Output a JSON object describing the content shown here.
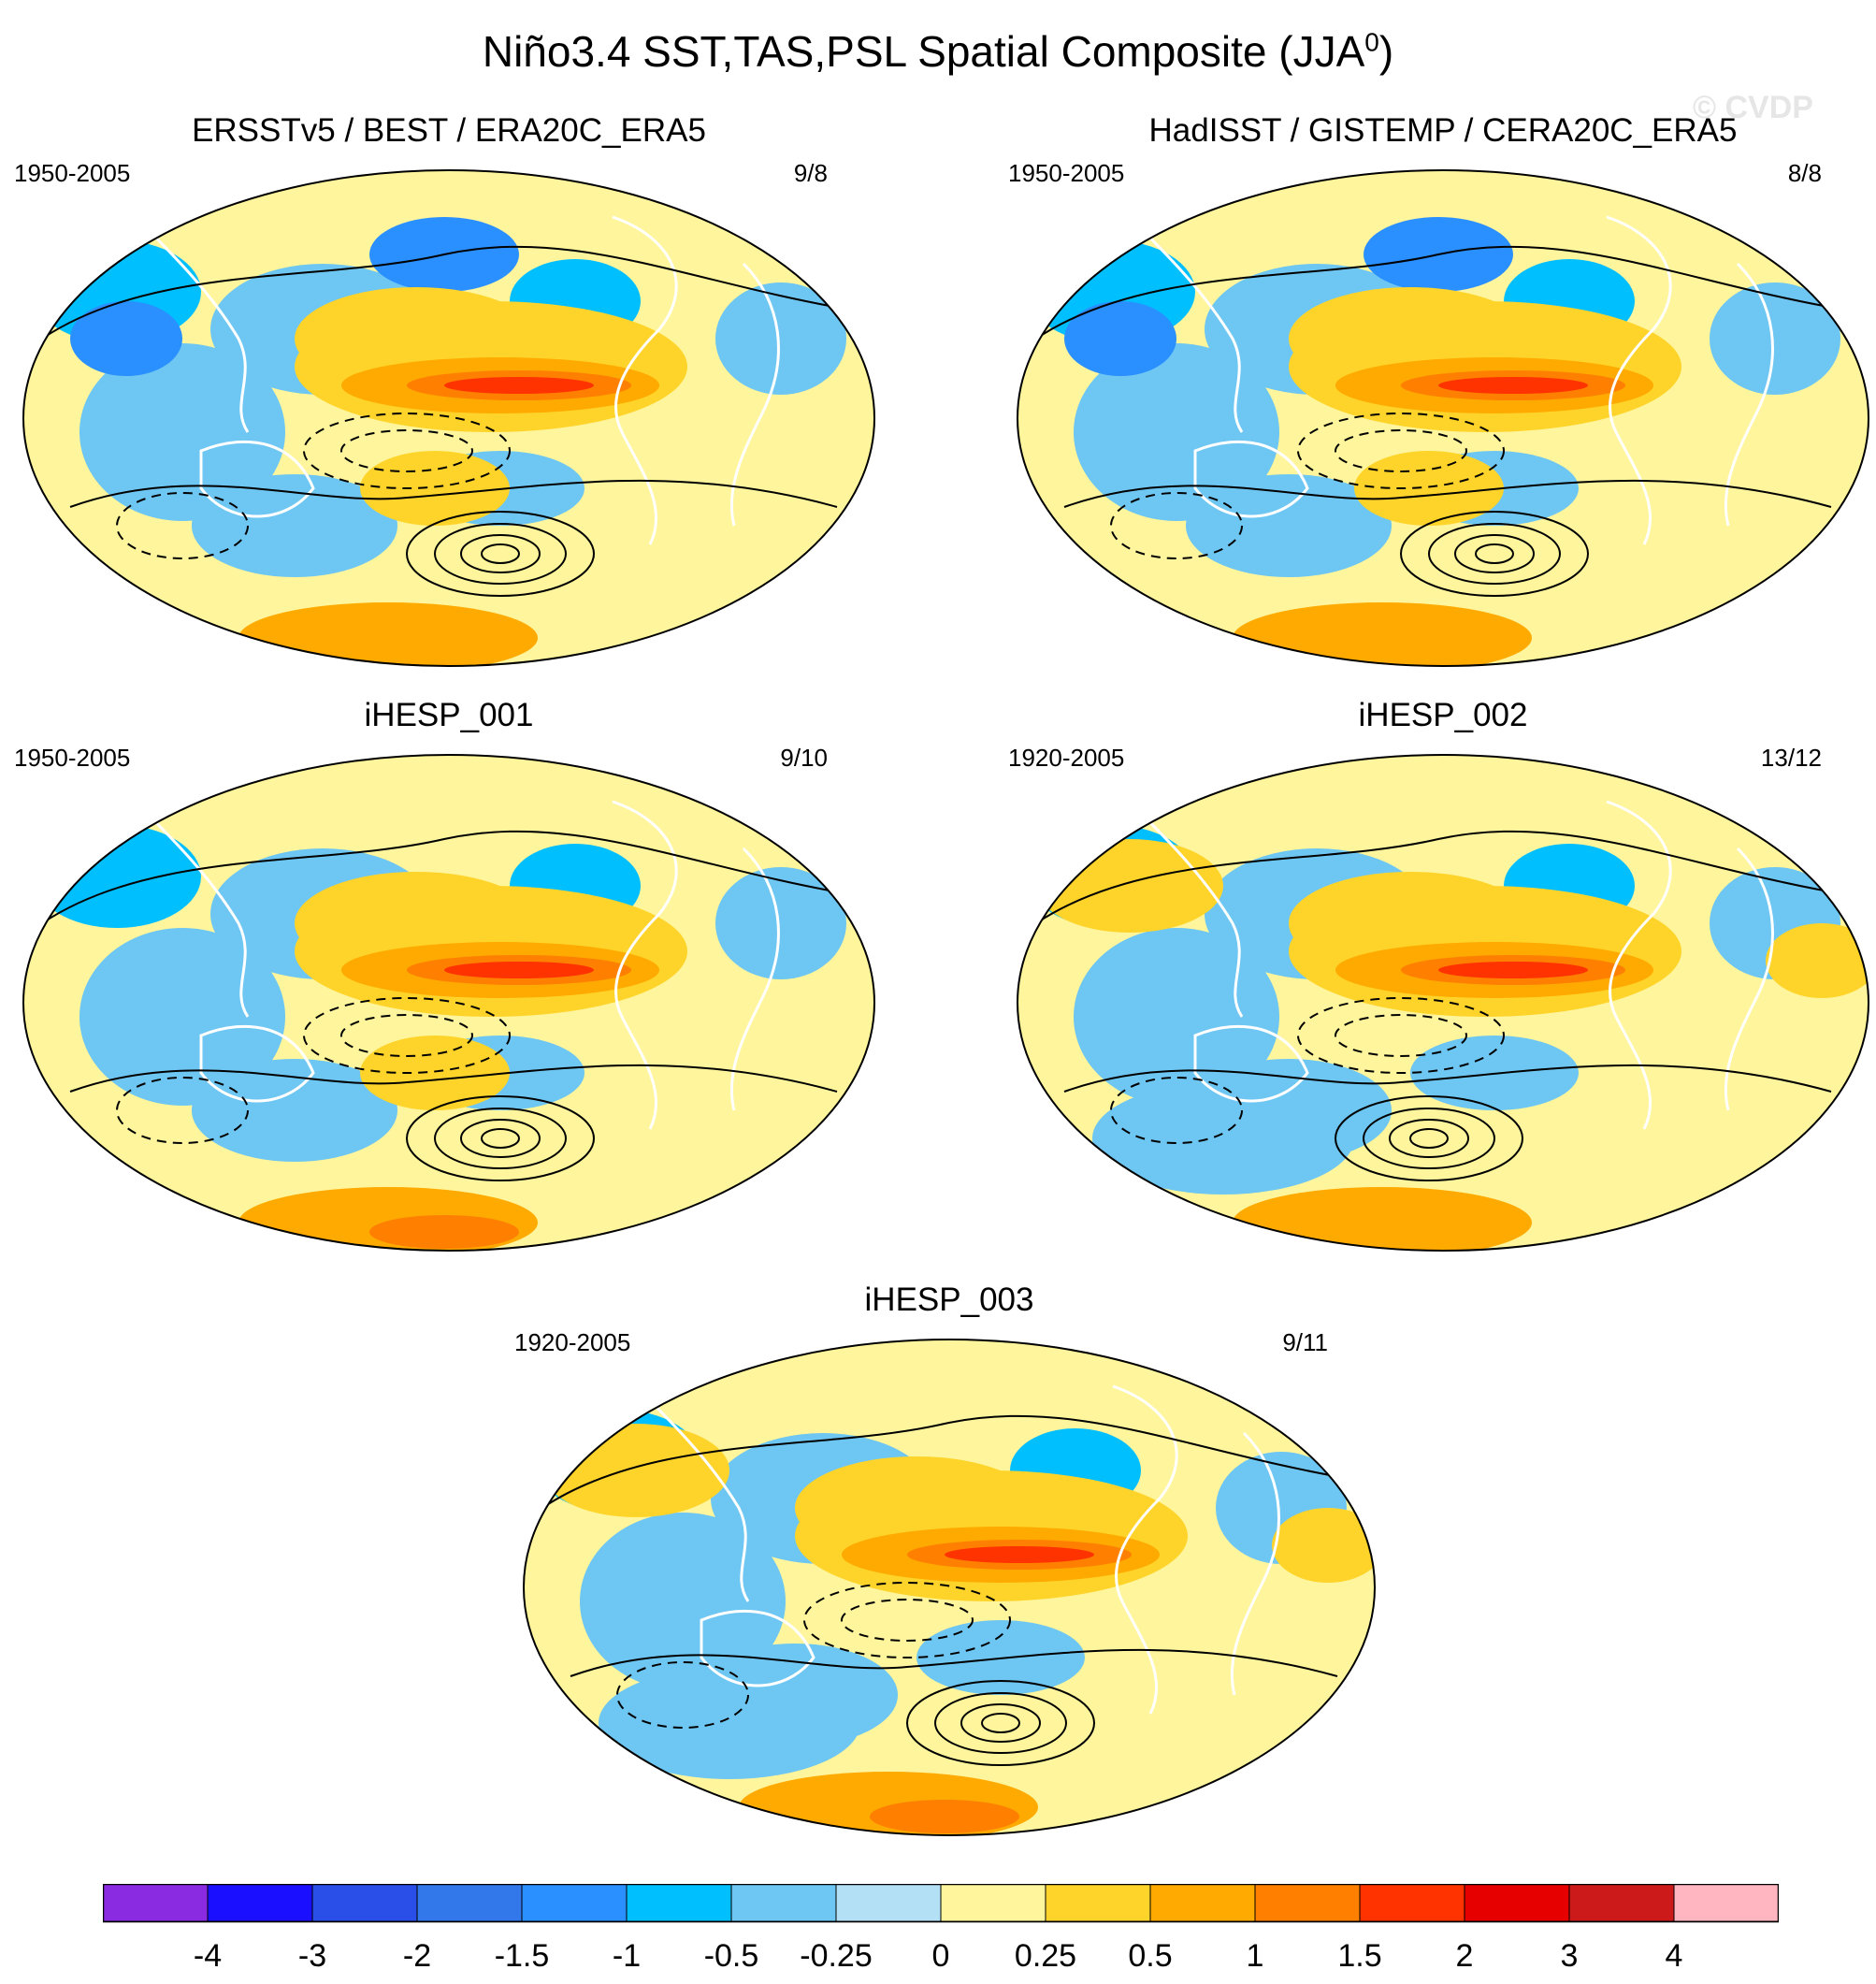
{
  "figure": {
    "title_main": "Niño3.4 SST,TAS,PSL Spatial Composite (JJA",
    "title_sup": "0",
    "title_end": ")",
    "watermark": "© CVDP"
  },
  "panels": [
    {
      "id": "p1",
      "title": "ERSSTv5 / BEST / ERA20C_ERA5",
      "years": "1950-2005",
      "counts": "9/8"
    },
    {
      "id": "p2",
      "title": "HadISST / GISTEMP / CERA20C_ERA5",
      "years": "1950-2005",
      "counts": "8/8"
    },
    {
      "id": "p3",
      "title": "iHESP_001",
      "years": "1950-2005",
      "counts": "9/10"
    },
    {
      "id": "p4",
      "title": "iHESP_002",
      "years": "1920-2005",
      "counts": "13/12"
    },
    {
      "id": "p5",
      "title": "iHESP_003",
      "years": "1920-2005",
      "counts": "9/11"
    }
  ],
  "chart_data": {
    "type": "heatmap",
    "title": "Niño3.4 SST,TAS,PSL Spatial Composite (JJA0)",
    "projection": "Robinson-like global map, Pacific-centered",
    "variables": [
      "SST",
      "TAS",
      "PSL (contours)"
    ],
    "colorbar": {
      "levels": [
        "-4",
        "-3",
        "-2",
        "-1.5",
        "-1",
        "-0.5",
        "-0.25",
        "0",
        "0.25",
        "0.5",
        "1",
        "1.5",
        "2",
        "3",
        "4"
      ],
      "colors": [
        "#8a2be2",
        "#1a0fff",
        "#2a4fe8",
        "#3378ea",
        "#2a8fff",
        "#00bfff",
        "#6ec6f2",
        "#b3e0f5",
        "#fff59c",
        "#ffd42a",
        "#ffaa00",
        "#ff7f00",
        "#ff3300",
        "#e60000",
        "#cc1a1a",
        "#ffb6c1"
      ]
    },
    "features": {
      "equatorial_pacific_max": "2 to 3 (Niño3.4 warming)",
      "southeast_pacific_psl": "positive closed contours (high pressure)",
      "south_pacific_psl": "negative dashed contours (low pressure)"
    }
  }
}
